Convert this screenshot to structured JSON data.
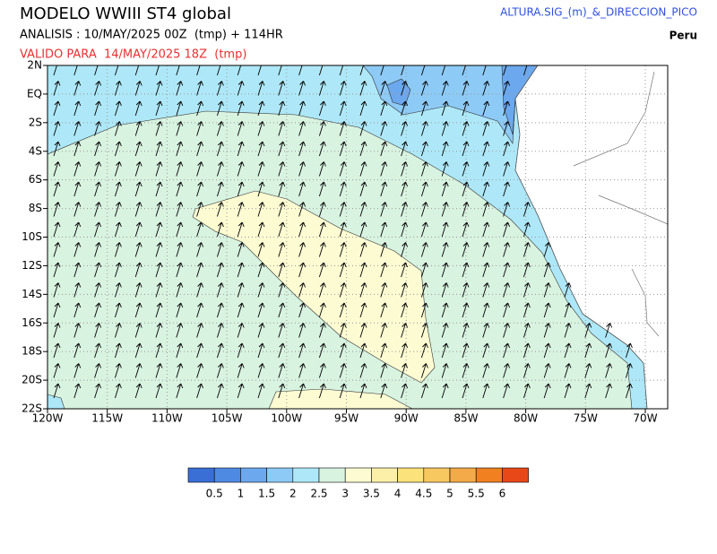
{
  "header": {
    "title": "MODELO WWIII ST4 global",
    "analysis": "ANALISIS : 10/MAY/2025 00Z  (tmp) + 114HR",
    "valid": "VALIDO PARA  14/MAY/2025 18Z  (tmp)",
    "variable": "ALTURA.SIG_(m)_&_DIRECCION_PICO",
    "region": "Peru"
  },
  "map": {
    "lat_labels": [
      "2N",
      "EQ",
      "2S",
      "4S",
      "6S",
      "8S",
      "10S",
      "12S",
      "14S",
      "16S",
      "18S",
      "20S",
      "22S"
    ],
    "lon_labels": [
      "120W",
      "115W",
      "110W",
      "105W",
      "100W",
      "95W",
      "90W",
      "85W",
      "80W",
      "75W",
      "70W"
    ]
  },
  "colorbar": {
    "labels": [
      "0.5",
      "1",
      "1.5",
      "2",
      "2.5",
      "3",
      "3.5",
      "4",
      "4.5",
      "5",
      "5.5",
      "6"
    ],
    "colors": [
      "#3a6fd6",
      "#4f8ae2",
      "#6ca8ee",
      "#8dcaf6",
      "#aee8f8",
      "#d8f3e0",
      "#fdfbd2",
      "#fcf0a8",
      "#fbe27a",
      "#f8c860",
      "#f4aa48",
      "#f08020",
      "#e84818"
    ]
  }
}
